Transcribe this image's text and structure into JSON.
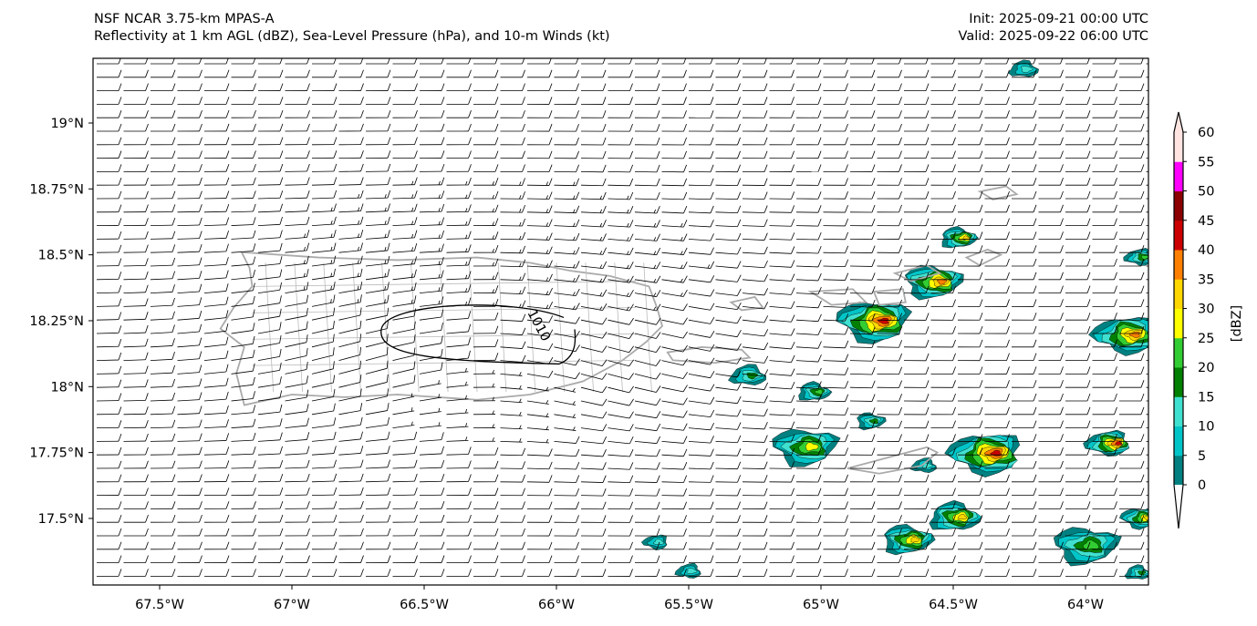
{
  "header": {
    "model": "NSF NCAR 3.75-km MPAS-A",
    "fields": "Reflectivity at 1 km AGL (dBZ), Sea-Level Pressure (hPa), and 10-m Winds (kt)",
    "init": "Init: 2025-09-21 00:00 UTC",
    "valid": "Valid: 2025-09-22 06:00 UTC"
  },
  "map": {
    "lon_range": [
      -67.75,
      -63.755
    ],
    "lat_range": [
      17.25,
      19.245
    ],
    "lon_ticks": [
      {
        "value": -67.5,
        "label": "67.5°W"
      },
      {
        "value": -67.0,
        "label": "67°W"
      },
      {
        "value": -66.5,
        "label": "66.5°W"
      },
      {
        "value": -66.0,
        "label": "66°W"
      },
      {
        "value": -65.5,
        "label": "65.5°W"
      },
      {
        "value": -65.0,
        "label": "65°W"
      },
      {
        "value": -64.5,
        "label": "64.5°W"
      },
      {
        "value": -64.0,
        "label": "64°W"
      }
    ],
    "lat_ticks": [
      {
        "value": 19.0,
        "label": "19°N"
      },
      {
        "value": 18.75,
        "label": "18.75°N"
      },
      {
        "value": 18.5,
        "label": "18.5°N"
      },
      {
        "value": 18.25,
        "label": "18.25°N"
      },
      {
        "value": 18.0,
        "label": "18°N"
      },
      {
        "value": 17.75,
        "label": "17.75°N"
      },
      {
        "value": 17.5,
        "label": "17.5°N"
      }
    ],
    "pressure_contour": {
      "label": "1010",
      "center_lon": -66.3,
      "center_lat": 18.2
    },
    "reflectivity_cells": [
      {
        "lon": -64.234,
        "lat": 19.204,
        "max_dbz": 10,
        "size": 0.04
      },
      {
        "lon": -64.483,
        "lat": 18.564,
        "max_dbz": 30,
        "size": 0.05
      },
      {
        "lon": -64.579,
        "lat": 18.398,
        "max_dbz": 35,
        "size": 0.08
      },
      {
        "lon": -64.803,
        "lat": 18.249,
        "max_dbz": 40,
        "size": 0.1
      },
      {
        "lon": -63.848,
        "lat": 18.197,
        "max_dbz": 35,
        "size": 0.09
      },
      {
        "lon": -63.797,
        "lat": 18.491,
        "max_dbz": 20,
        "size": 0.04
      },
      {
        "lon": -65.276,
        "lat": 18.042,
        "max_dbz": 15,
        "size": 0.05
      },
      {
        "lon": -65.028,
        "lat": 17.98,
        "max_dbz": 20,
        "size": 0.045
      },
      {
        "lon": -64.814,
        "lat": 17.869,
        "max_dbz": 15,
        "size": 0.04
      },
      {
        "lon": -65.062,
        "lat": 17.772,
        "max_dbz": 25,
        "size": 0.09
      },
      {
        "lon": -64.379,
        "lat": 17.747,
        "max_dbz": 40,
        "size": 0.1
      },
      {
        "lon": -63.917,
        "lat": 17.785,
        "max_dbz": 40,
        "size": 0.06
      },
      {
        "lon": -64.61,
        "lat": 17.7,
        "max_dbz": 10,
        "size": 0.035
      },
      {
        "lon": -64.497,
        "lat": 17.505,
        "max_dbz": 30,
        "size": 0.07
      },
      {
        "lon": -64.676,
        "lat": 17.419,
        "max_dbz": 30,
        "size": 0.07
      },
      {
        "lon": -64.0,
        "lat": 17.398,
        "max_dbz": 20,
        "size": 0.09
      },
      {
        "lon": -63.797,
        "lat": 17.502,
        "max_dbz": 30,
        "size": 0.05
      },
      {
        "lon": -65.624,
        "lat": 17.41,
        "max_dbz": 10,
        "size": 0.035
      },
      {
        "lon": -65.5,
        "lat": 17.3,
        "max_dbz": 10,
        "size": 0.035
      },
      {
        "lon": -63.803,
        "lat": 17.294,
        "max_dbz": 15,
        "size": 0.035
      }
    ]
  },
  "colorbar": {
    "label": "[dBZ]",
    "levels": [
      0,
      5,
      10,
      15,
      20,
      25,
      30,
      35,
      40,
      45,
      50,
      55,
      60
    ],
    "tick_labels": [
      "0",
      "5",
      "10",
      "15",
      "20",
      "25",
      "30",
      "35",
      "40",
      "45",
      "50",
      "55",
      "60"
    ],
    "colors": [
      "#008080",
      "#00c5c8",
      "#40e0d0",
      "#008000",
      "#32cd32",
      "#ffff00",
      "#ffd700",
      "#ff8000",
      "#cc0000",
      "#8b0000",
      "#ff00ff",
      "#ffe4e1"
    ],
    "under_color": "#ffffff",
    "over_color": "#ffe4e1"
  }
}
